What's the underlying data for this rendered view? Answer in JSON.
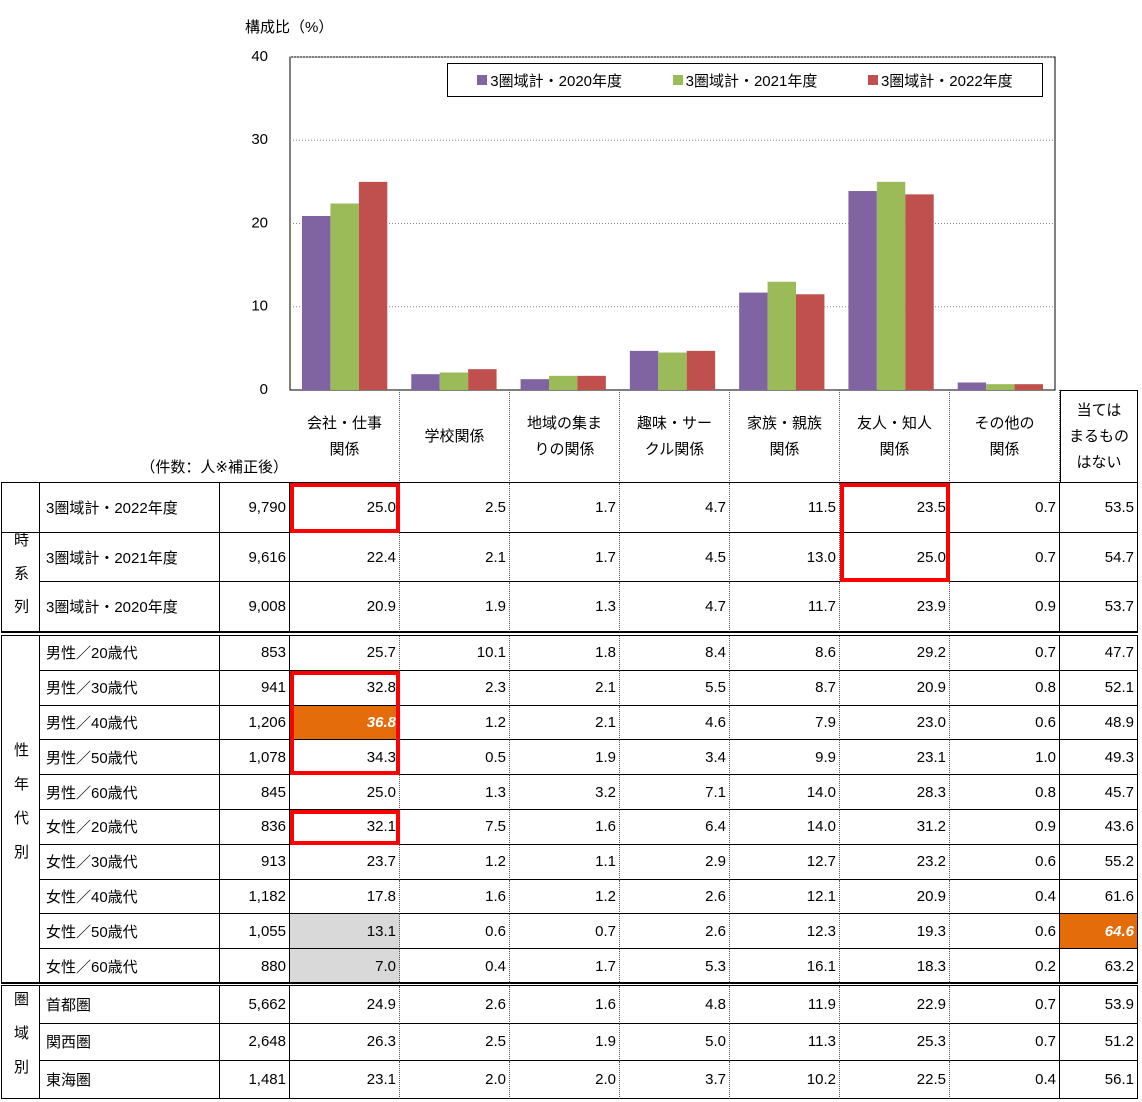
{
  "chart_data": {
    "type": "bar",
    "y_axis_label": "構成比（%）",
    "categories": [
      "会社・仕事\n関係",
      "学校関係",
      "地域の集ま\nりの関係",
      "趣味・サー\nクル関係",
      "家族・親族\n関係",
      "友人・知人\n関係",
      "その他の\n関係",
      "当ては\nまるもの\nはない"
    ],
    "series": [
      {
        "name": "3圏域計・2020年度",
        "color": "#8064a2",
        "values": [
          20.9,
          1.9,
          1.3,
          4.7,
          11.7,
          23.9,
          0.9,
          null
        ]
      },
      {
        "name": "3圏域計・2021年度",
        "color": "#9bbb59",
        "values": [
          22.4,
          2.1,
          1.7,
          4.5,
          13.0,
          25.0,
          0.7,
          null
        ]
      },
      {
        "name": "3圏域計・2022年度",
        "color": "#c0504d",
        "values": [
          25.0,
          2.5,
          1.7,
          4.7,
          11.5,
          23.5,
          0.7,
          null
        ]
      }
    ],
    "ylim": [
      0,
      40
    ],
    "yticks": [
      0,
      10,
      20,
      30,
      40
    ],
    "grid": true,
    "legend": "top-right"
  },
  "table": {
    "count_label": "（件数：人※補正後）",
    "groups": [
      {
        "rows": [
          [
            "3圏域計・2022年度",
            "9,790",
            "25.0",
            "2.5",
            "1.7",
            "4.7",
            "11.5",
            "23.5",
            "0.7",
            "53.5"
          ]
        ]
      },
      {
        "label": "時系列",
        "rows": [
          [
            "3圏域計・2021年度",
            "9,616",
            "22.4",
            "2.1",
            "1.7",
            "4.5",
            "13.0",
            "25.0",
            "0.7",
            "54.7"
          ],
          [
            "3圏域計・2020年度",
            "9,008",
            "20.9",
            "1.9",
            "1.3",
            "4.7",
            "11.7",
            "23.9",
            "0.9",
            "53.7"
          ]
        ]
      },
      {
        "label": "性年代別",
        "rows": [
          [
            "男性／20歳代",
            "853",
            "25.7",
            "10.1",
            "1.8",
            "8.4",
            "8.6",
            "29.2",
            "0.7",
            "47.7"
          ],
          [
            "男性／30歳代",
            "941",
            "32.8",
            "2.3",
            "2.1",
            "5.5",
            "8.7",
            "20.9",
            "0.8",
            "52.1"
          ],
          [
            "男性／40歳代",
            "1,206",
            "36.8",
            "1.2",
            "2.1",
            "4.6",
            "7.9",
            "23.0",
            "0.6",
            "48.9"
          ],
          [
            "男性／50歳代",
            "1,078",
            "34.3",
            "0.5",
            "1.9",
            "3.4",
            "9.9",
            "23.1",
            "1.0",
            "49.3"
          ],
          [
            "男性／60歳代",
            "845",
            "25.0",
            "1.3",
            "3.2",
            "7.1",
            "14.0",
            "28.3",
            "0.8",
            "45.7"
          ],
          [
            "女性／20歳代",
            "836",
            "32.1",
            "7.5",
            "1.6",
            "6.4",
            "14.0",
            "31.2",
            "0.9",
            "43.6"
          ],
          [
            "女性／30歳代",
            "913",
            "23.7",
            "1.2",
            "1.1",
            "2.9",
            "12.7",
            "23.2",
            "0.6",
            "55.2"
          ],
          [
            "女性／40歳代",
            "1,182",
            "17.8",
            "1.6",
            "1.2",
            "2.6",
            "12.1",
            "20.9",
            "0.4",
            "61.6"
          ],
          [
            "女性／50歳代",
            "1,055",
            "13.1",
            "0.6",
            "0.7",
            "2.6",
            "12.3",
            "19.3",
            "0.6",
            "64.6"
          ],
          [
            "女性／60歳代",
            "880",
            "7.0",
            "0.4",
            "1.7",
            "5.3",
            "16.1",
            "18.3",
            "0.2",
            "63.2"
          ]
        ]
      },
      {
        "label": "圏域別",
        "rows": [
          [
            "首都圏",
            "5,662",
            "24.9",
            "2.6",
            "1.6",
            "4.8",
            "11.9",
            "22.9",
            "0.7",
            "53.9"
          ],
          [
            "関西圏",
            "2,648",
            "26.3",
            "2.5",
            "1.9",
            "5.0",
            "11.3",
            "25.3",
            "0.7",
            "51.2"
          ],
          [
            "東海圏",
            "1,481",
            "23.1",
            "2.0",
            "2.0",
            "3.7",
            "10.2",
            "22.5",
            "0.4",
            "56.1"
          ]
        ]
      }
    ]
  }
}
